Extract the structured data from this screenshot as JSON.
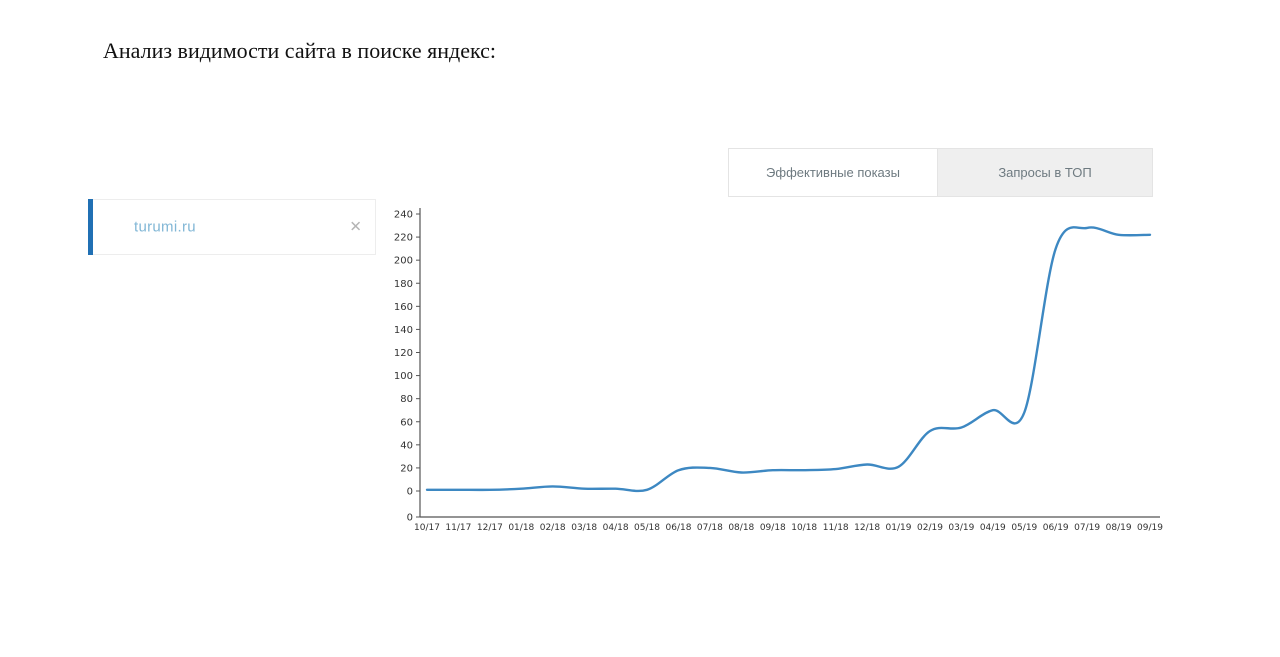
{
  "page": {
    "title": "Анализ видимости сайта в поиске яндекс:"
  },
  "tabs": [
    {
      "label": "Эффективные показы",
      "active": true
    },
    {
      "label": "Запросы в ТОП",
      "active": false
    }
  ],
  "site_filter": {
    "label": "turumi.ru",
    "close_icon": "✕"
  },
  "colors": {
    "line": "#3d88c2",
    "accent": "#2070b4",
    "site_label": "#82b7d6",
    "axis": "#555555",
    "tick_text": "#333333"
  },
  "chart_data": {
    "type": "line",
    "title": "",
    "xlabel": "",
    "ylabel": "",
    "x": [
      "10/17",
      "11/17",
      "12/17",
      "01/18",
      "02/18",
      "03/18",
      "04/18",
      "05/18",
      "06/18",
      "07/18",
      "08/18",
      "09/18",
      "10/18",
      "11/18",
      "12/18",
      "01/19",
      "02/19",
      "03/19",
      "04/19",
      "05/19",
      "06/19",
      "07/19",
      "08/19",
      "09/19"
    ],
    "series": [
      {
        "name": "turumi.ru",
        "values": [
          1,
          1,
          1,
          2,
          4,
          2,
          2,
          1,
          18,
          20,
          16,
          18,
          18,
          19,
          23,
          21,
          52,
          55,
          70,
          68,
          210,
          228,
          222,
          222
        ]
      }
    ],
    "ylim": [
      0,
      240
    ],
    "ytick_step": 20,
    "grid": false,
    "legend": "none"
  }
}
